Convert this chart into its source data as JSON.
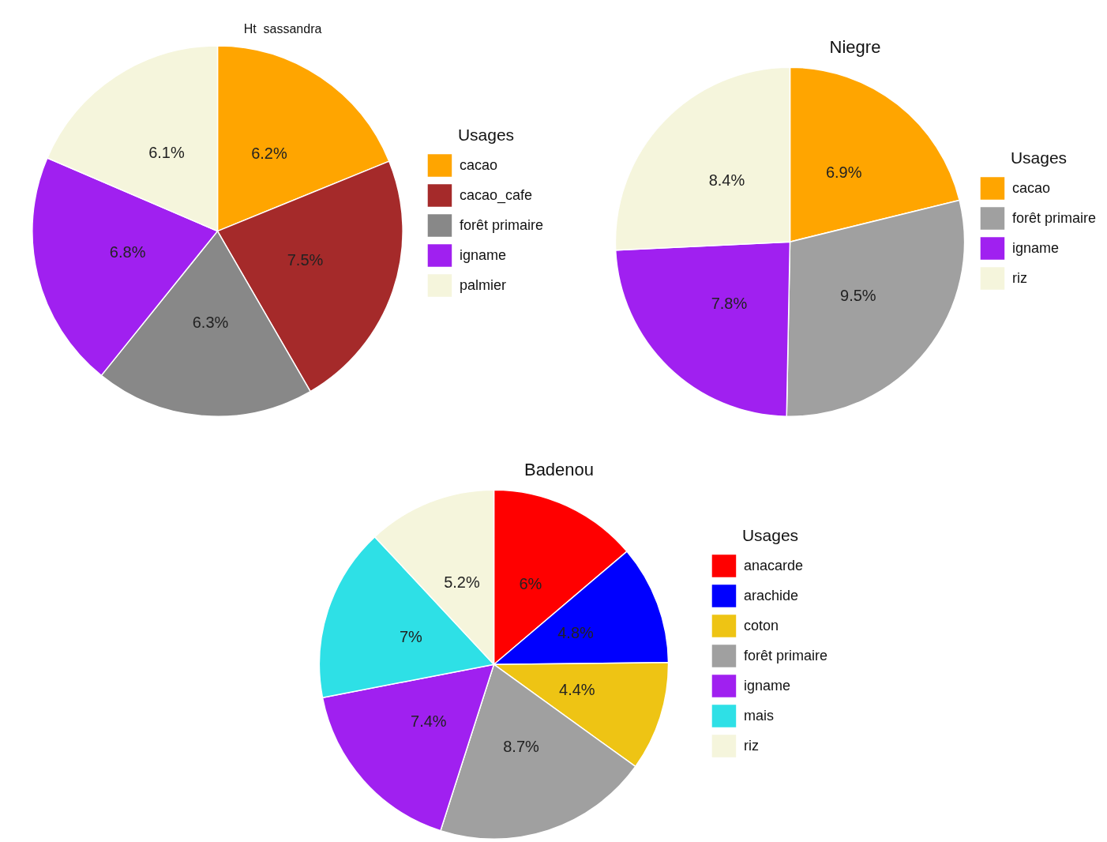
{
  "chart_data": [
    {
      "type": "pie",
      "title": "Ht  sassandra",
      "legend_title": "Usages",
      "legend": "right",
      "categories": [
        "cacao",
        "cacao_cafe",
        "forêt primaire",
        "igname",
        "palmier"
      ],
      "values": [
        6.2,
        7.5,
        6.3,
        6.8,
        6.1
      ],
      "value_labels": [
        "6.2%",
        "7.5%",
        "6.3%",
        "6.8%",
        "6.1%"
      ],
      "colors": [
        "#ffa500",
        "#a52a2a",
        "#888888",
        "#a020f0",
        "#f5f5dc"
      ]
    },
    {
      "type": "pie",
      "title": "Niegre",
      "legend_title": "Usages",
      "legend": "right",
      "categories": [
        "cacao",
        "forêt primaire",
        "igname",
        "riz"
      ],
      "values": [
        6.9,
        9.5,
        7.8,
        8.4
      ],
      "value_labels": [
        "6.9%",
        "9.5%",
        "7.8%",
        "8.4%"
      ],
      "colors": [
        "#ffa500",
        "#a0a0a0",
        "#a020f0",
        "#f5f5dc"
      ]
    },
    {
      "type": "pie",
      "title": "Badenou",
      "legend_title": "Usages",
      "legend": "right",
      "categories": [
        "anacarde",
        "arachide",
        "coton",
        "forêt primaire",
        "igname",
        "mais",
        "riz"
      ],
      "values": [
        6,
        4.8,
        4.4,
        8.7,
        7.4,
        7,
        5.2
      ],
      "value_labels": [
        "6%",
        "4.8%",
        "4.4%",
        "8.7%",
        "7.4%",
        "7%",
        "5.2%"
      ],
      "colors": [
        "#ff0000",
        "#0000ff",
        "#eec414",
        "#a0a0a0",
        "#a020f0",
        "#2ee0e6",
        "#f5f5dc"
      ]
    }
  ]
}
